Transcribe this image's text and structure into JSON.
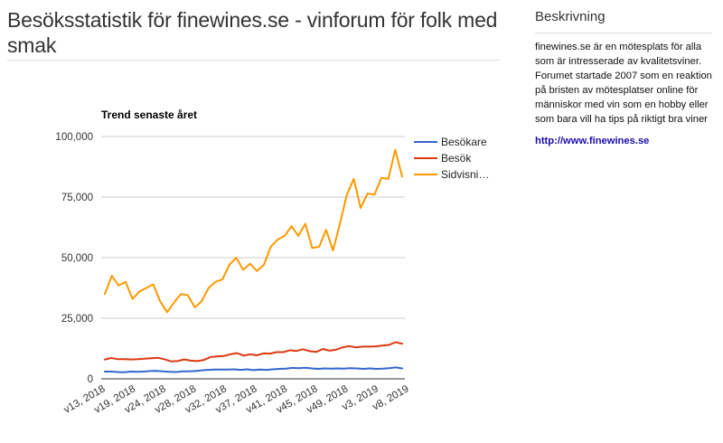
{
  "page": {
    "title": "Besöksstatistik för finewines.se - vinforum för folk med smak"
  },
  "sidebar": {
    "heading": "Beskrivning",
    "description": "finewines.se är en mötesplats för alla som är intresserade av kvalitetsviner. Forumet startade 2007 som en reaktion på bristen av mötesplatser online för människor med vin som en hobby eller som bara vill ha tips på riktigt bra viner",
    "link_text": "http://www.finewines.se"
  },
  "chart_data": {
    "type": "line",
    "title": "Trend senaste året",
    "xlabel": "",
    "ylabel": "",
    "ylim": [
      0,
      100000
    ],
    "yticks": [
      0,
      25000,
      50000,
      75000,
      100000
    ],
    "ytick_labels": [
      "0",
      "25,000",
      "50,000",
      "75,000",
      "100,000"
    ],
    "xtick_labels": [
      "v13, 2018",
      "v19, 2018",
      "v24, 2018",
      "v28, 2018",
      "v32, 2018",
      "v37, 2018",
      "v41, 2018",
      "v45, 2018",
      "v49, 2018",
      "v3, 2019",
      "v8, 2019"
    ],
    "grid": true,
    "legend_position": "right",
    "series": [
      {
        "name": "Besökare",
        "color": "#3366cc",
        "values": [
          3000,
          3000,
          2800,
          2700,
          3000,
          2900,
          3000,
          3200,
          3300,
          3100,
          2900,
          2800,
          3100,
          3100,
          3200,
          3500,
          3700,
          3800,
          3800,
          3800,
          3900,
          3700,
          3900,
          3600,
          3800,
          3700,
          3900,
          4100,
          4200,
          4500,
          4400,
          4600,
          4300,
          4100,
          4300,
          4200,
          4300,
          4200,
          4400,
          4300,
          4100,
          4300,
          4100,
          4200,
          4400,
          4700,
          4300
        ]
      },
      {
        "name": "Besök",
        "color": "#dc3912",
        "values": [
          8000,
          8600,
          8100,
          8100,
          8000,
          8100,
          8300,
          8500,
          8700,
          8100,
          7200,
          7300,
          8000,
          7500,
          7300,
          7800,
          9000,
          9200,
          9400,
          10100,
          10600,
          9600,
          10100,
          9700,
          10500,
          10400,
          11000,
          11000,
          11800,
          11500,
          12200,
          11400,
          11100,
          12300,
          11600,
          12000,
          13000,
          13500,
          13000,
          13300,
          13300,
          13400,
          13700,
          14000,
          15100,
          14500
        ]
      },
      {
        "name": "Sidvisni…",
        "color": "#ff9900",
        "values": [
          35000,
          42500,
          38500,
          40000,
          33000,
          36000,
          37500,
          39000,
          32000,
          27500,
          31500,
          35000,
          34500,
          29500,
          32000,
          37500,
          40000,
          41000,
          47000,
          50000,
          45000,
          47500,
          44500,
          47000,
          54500,
          57500,
          59000,
          63000,
          59000,
          64000,
          54000,
          54500,
          61500,
          53000,
          64000,
          76000,
          82500,
          70500,
          76500,
          76000,
          83000,
          82500,
          94500,
          83500
        ]
      }
    ]
  }
}
